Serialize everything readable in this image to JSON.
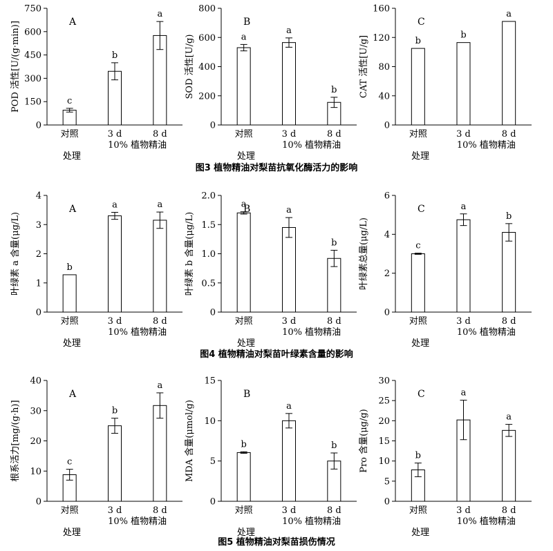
{
  "figures": [
    {
      "caption": "图3   植物精油对梨苗抗氧化酶活力的影响",
      "charts": [
        {
          "type": "bar",
          "panel_label": "A",
          "ylabel": "POD 活性[U/(g·min)]",
          "ylim": [
            0,
            750
          ],
          "yticks": [
            0,
            150,
            300,
            450,
            600,
            750
          ],
          "categories": [
            "对照",
            "3 d",
            "8 d"
          ],
          "values": [
            95,
            345,
            575
          ],
          "errors": [
            12,
            55,
            90
          ],
          "letters": [
            "c",
            "b",
            "a"
          ],
          "treatment_label": "10% 植物精油",
          "xlabel": "处理"
        },
        {
          "type": "bar",
          "panel_label": "B",
          "ylabel": "SOD 活性[U/g)",
          "ylim": [
            0,
            800
          ],
          "yticks": [
            0,
            200,
            400,
            600,
            800
          ],
          "categories": [
            "对照",
            "3 d",
            "8 d"
          ],
          "values": [
            530,
            565,
            155
          ],
          "errors": [
            22,
            32,
            35
          ],
          "letters": [
            "a",
            "a",
            "b"
          ],
          "treatment_label": "10% 植物精油",
          "xlabel": "处理"
        },
        {
          "type": "bar",
          "panel_label": "C",
          "ylabel": "CAT 活性[U/g]",
          "ylim": [
            0,
            160
          ],
          "yticks": [
            0,
            40,
            80,
            120,
            160
          ],
          "categories": [
            "对照",
            "3 d",
            "8 d"
          ],
          "values": [
            105,
            113,
            142
          ],
          "errors": [
            0,
            0,
            0
          ],
          "letters": [
            "b",
            "b",
            "a"
          ],
          "treatment_label": "10% 植物精油",
          "xlabel": "处理"
        }
      ]
    },
    {
      "caption": "图4   植物精油对梨苗叶绿素含量的影响",
      "charts": [
        {
          "type": "bar",
          "panel_label": "A",
          "ylabel": "叶绿素 a 含量(μg/L)",
          "ylim": [
            0,
            4
          ],
          "yticks": [
            0,
            1,
            2,
            3,
            4
          ],
          "categories": [
            "对照",
            "3 d",
            "8 d"
          ],
          "values": [
            1.28,
            3.3,
            3.15
          ],
          "errors": [
            0,
            0.12,
            0.28
          ],
          "letters": [
            "b",
            "a",
            "a"
          ],
          "treatment_label": "10% 植物精油",
          "xlabel": "处理"
        },
        {
          "type": "bar",
          "panel_label": "B",
          "ylabel": "叶绿素 b 含量(μg/L)",
          "ylim": [
            0,
            2
          ],
          "yticks": [
            0,
            0.5,
            1.0,
            1.5,
            2.0
          ],
          "tick_labels": [
            "0",
            "0.5",
            "1.0",
            "1.5",
            "2.0"
          ],
          "categories": [
            "对照",
            "3 d",
            "8 d"
          ],
          "values": [
            1.7,
            1.45,
            0.92
          ],
          "errors": [
            0.02,
            0.17,
            0.14
          ],
          "letters": [
            "a",
            "a",
            "b"
          ],
          "treatment_label": "10% 植物精油",
          "xlabel": "处理"
        },
        {
          "type": "bar",
          "panel_label": "C",
          "ylabel": "叶绿素总量(μg/L)",
          "ylim": [
            0,
            6
          ],
          "yticks": [
            0,
            2,
            4,
            6
          ],
          "categories": [
            "对照",
            "3 d",
            "8 d"
          ],
          "values": [
            3.0,
            4.75,
            4.1
          ],
          "errors": [
            0.03,
            0.3,
            0.45
          ],
          "letters": [
            "c",
            "a",
            "b"
          ],
          "treatment_label": "10% 植物精油",
          "xlabel": "处理"
        }
      ]
    },
    {
      "caption": "图5   植物精油对梨苗损伤情况",
      "charts": [
        {
          "type": "bar",
          "panel_label": "A",
          "ylabel": "根系活力[mg/(g·h)]",
          "ylim": [
            0,
            40
          ],
          "yticks": [
            0,
            10,
            20,
            30,
            40
          ],
          "categories": [
            "对照",
            "3 d",
            "8 d"
          ],
          "values": [
            8.8,
            25,
            31.7
          ],
          "errors": [
            1.8,
            2.5,
            4.2
          ],
          "letters": [
            "c",
            "b",
            "a"
          ],
          "treatment_label": "10% 植物精油",
          "xlabel": "处理"
        },
        {
          "type": "bar",
          "panel_label": "B",
          "ylabel": "MDA 含量(μmol/g)",
          "ylim": [
            0,
            15
          ],
          "yticks": [
            0,
            5,
            10,
            15
          ],
          "categories": [
            "对照",
            "3 d",
            "8 d"
          ],
          "values": [
            6.05,
            10,
            5
          ],
          "errors": [
            0.1,
            0.9,
            1.0
          ],
          "letters": [
            "b",
            "a",
            "b"
          ],
          "treatment_label": "10% 植物精油",
          "xlabel": "处理"
        },
        {
          "type": "bar",
          "panel_label": "C",
          "ylabel": "Pro 含量(μg/g)",
          "ylim": [
            0,
            30
          ],
          "yticks": [
            0,
            5,
            10,
            15,
            20,
            25,
            30
          ],
          "categories": [
            "对照",
            "3 d",
            "8 d"
          ],
          "values": [
            7.8,
            20.2,
            17.6
          ],
          "errors": [
            1.7,
            4.9,
            1.5
          ],
          "letters": [
            "b",
            "a",
            "a"
          ],
          "treatment_label": "10% 植物精油",
          "xlabel": "处理"
        }
      ]
    }
  ]
}
